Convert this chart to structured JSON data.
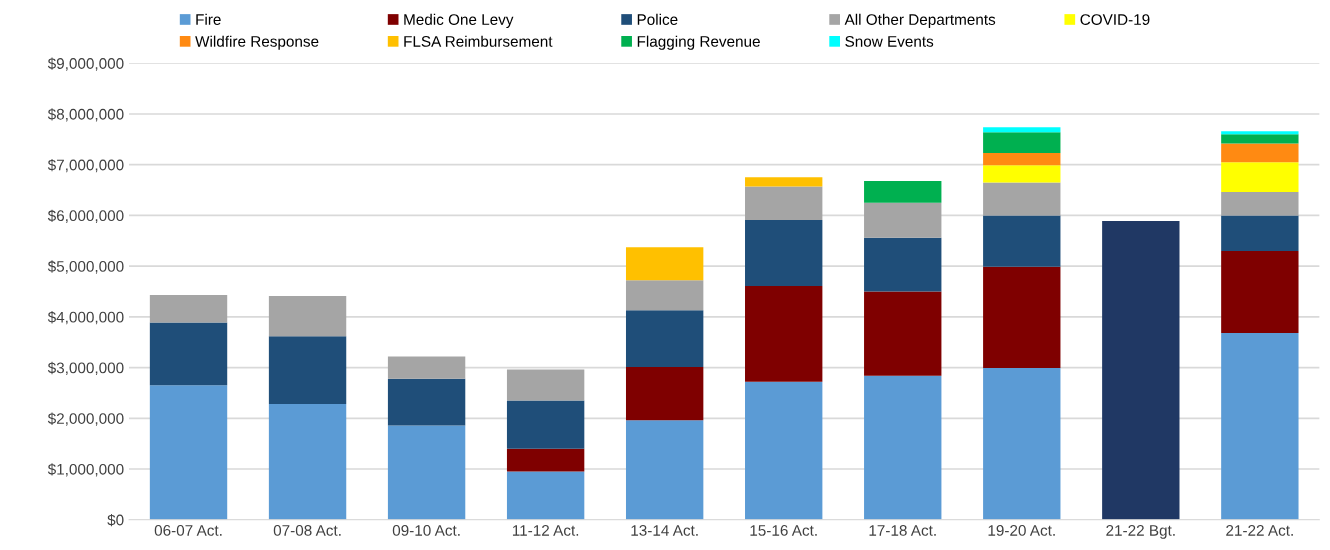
{
  "chart_data": {
    "type": "bar",
    "stacked": true,
    "grid": "y",
    "legend": "top",
    "categories": [
      "06-07 Act.",
      "07-08 Act.",
      "09-10 Act.",
      "11-12 Act.",
      "13-14 Act.",
      "15-16 Act.",
      "17-18 Act.",
      "19-20 Act.",
      "21-22 Bgt.",
      "21-22 Act."
    ],
    "ylim": [
      0,
      9000000
    ],
    "yticks": [
      {
        "value": 0,
        "label": "$0"
      },
      {
        "value": 1000000,
        "label": "$1,000,000"
      },
      {
        "value": 2000000,
        "label": "$2,000,000"
      },
      {
        "value": 3000000,
        "label": "$3,000,000"
      },
      {
        "value": 4000000,
        "label": "$4,000,000"
      },
      {
        "value": 5000000,
        "label": "$5,000,000"
      },
      {
        "value": 6000000,
        "label": "$6,000,000"
      },
      {
        "value": 7000000,
        "label": "$7,000,000"
      },
      {
        "value": 8000000,
        "label": "$8,000,000"
      },
      {
        "value": 9000000,
        "label": "$9,000,000"
      }
    ],
    "series": [
      {
        "name": "Fire",
        "color": "#5b9bd5",
        "values": [
          2650000,
          2280000,
          1860000,
          950000,
          1960000,
          2720000,
          2840000,
          2990000,
          null,
          3680000
        ]
      },
      {
        "name": "Medic One Levy",
        "color": "#7f0000",
        "values": [
          null,
          null,
          null,
          450000,
          1050000,
          1890000,
          1660000,
          2000000,
          null,
          1620000
        ]
      },
      {
        "name": "Police",
        "color": "#1f4e79",
        "values": [
          1240000,
          1340000,
          920000,
          950000,
          1120000,
          1300000,
          1060000,
          1010000,
          null,
          700000
        ]
      },
      {
        "name": "All Other Departments",
        "color": "#a5a5a5",
        "values": [
          540000,
          790000,
          440000,
          610000,
          590000,
          660000,
          690000,
          650000,
          null,
          460000
        ]
      },
      {
        "name": "COVID-19",
        "color": "#ffff00",
        "values": [
          null,
          null,
          null,
          null,
          null,
          null,
          null,
          340000,
          null,
          590000
        ]
      },
      {
        "name": "Wildfire Response",
        "color": "#ff8a12",
        "values": [
          null,
          null,
          null,
          null,
          null,
          null,
          null,
          240000,
          null,
          370000
        ]
      },
      {
        "name": "FLSA Reimbursement",
        "color": "#ffc000",
        "values": [
          null,
          null,
          null,
          null,
          650000,
          180000,
          null,
          null,
          null,
          null
        ]
      },
      {
        "name": "Flagging Revenue",
        "color": "#00b050",
        "values": [
          null,
          null,
          null,
          null,
          null,
          null,
          430000,
          410000,
          null,
          180000
        ]
      },
      {
        "name": "Snow Events",
        "color": "#00ffff",
        "values": [
          null,
          null,
          null,
          null,
          null,
          null,
          null,
          100000,
          null,
          60000
        ]
      },
      {
        "color": "#203864",
        "values": [
          null,
          null,
          null,
          null,
          null,
          null,
          null,
          null,
          5890000,
          null
        ]
      }
    ]
  }
}
